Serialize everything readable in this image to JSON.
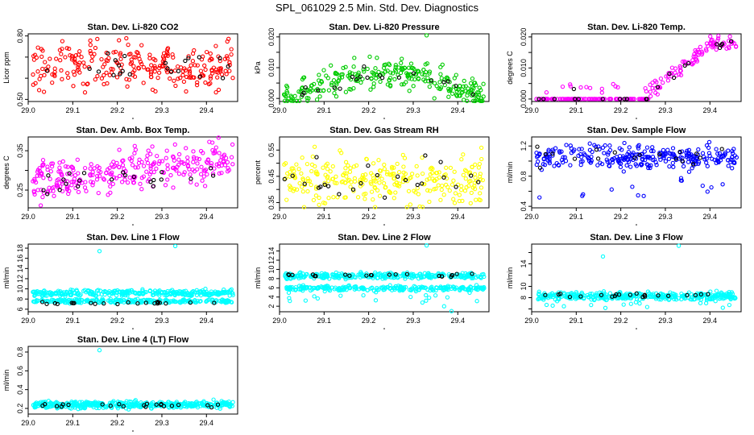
{
  "title": "SPL_061029  2.5 Min. Std. Dev. Diagnostics",
  "colors": {
    "black": "#000000",
    "red": "#ff0000",
    "green": "#00cc00",
    "magenta": "#ff00ff",
    "yellow": "#ffff00",
    "blue": "#0000ff",
    "cyan": "#00ffff"
  },
  "chart_data": [
    {
      "type": "scatter",
      "title": "Stan. Dev. Li-820 CO2",
      "ylabel": "Licor ppm",
      "xlim": [
        29.0,
        29.47
      ],
      "ylim": [
        0.49,
        0.81
      ],
      "xticks": [
        "29.0",
        "29.1",
        "29.2",
        "29.3",
        "29.4"
      ],
      "yticks": [
        "0.50",
        "0.60",
        "0.70",
        "0.80"
      ],
      "yticks_shown": [
        "0.50",
        "0.65",
        "0.80"
      ],
      "series": [
        {
          "name": "data",
          "color": "red",
          "n": 260,
          "pattern": "noise",
          "center": 0.66,
          "spread": 0.055,
          "x": [],
          "y": []
        },
        {
          "name": "highlight",
          "color": "black",
          "n": 22,
          "pattern": "noise",
          "center": 0.65,
          "spread": 0.04,
          "x": [],
          "y": []
        }
      ]
    },
    {
      "type": "scatter",
      "title": "Stan. Dev. Li-820 Pressure",
      "ylabel": "kPa",
      "xlim": [
        29.0,
        29.47
      ],
      "ylim": [
        -0.001,
        0.021
      ],
      "xticks": [
        "29.0",
        "29.1",
        "29.2",
        "29.3",
        "29.4"
      ],
      "yticks": [
        "0.000",
        "0.005",
        "0.010",
        "0.015",
        "0.020"
      ],
      "yticks_shown": [
        "0.000",
        "0.010",
        "0.020"
      ],
      "series": [
        {
          "name": "data",
          "color": "green",
          "n": 280,
          "pattern": "hump",
          "center": 0.008,
          "spread": 0.004,
          "x": [],
          "y": []
        },
        {
          "name": "highlight",
          "color": "black",
          "n": 20,
          "pattern": "hump",
          "center": 0.008,
          "spread": 0.002,
          "x": [],
          "y": []
        },
        {
          "name": "outlier",
          "color": "green",
          "n": 0,
          "pattern": "fixed",
          "x": [
            29.33
          ],
          "y": [
            0.0205
          ]
        }
      ]
    },
    {
      "type": "scatter",
      "title": "Stan. Dev. Li-820 Temp.",
      "ylabel": "degrees C",
      "xlim": [
        29.0,
        29.47
      ],
      "ylim": [
        -0.0008,
        0.021
      ],
      "xticks": [
        "29.0",
        "29.1",
        "29.2",
        "29.3",
        "29.4"
      ],
      "yticks": [
        "0.000",
        "0.005",
        "0.010",
        "0.015",
        "0.020"
      ],
      "yticks_shown": [
        "0.000",
        "0.010",
        "0.020"
      ],
      "series": [
        {
          "name": "data",
          "color": "magenta",
          "n": 220,
          "pattern": "ramp",
          "x": [],
          "y": []
        },
        {
          "name": "highlight",
          "color": "black",
          "n": 22,
          "pattern": "ramp",
          "x": [],
          "y": []
        }
      ]
    },
    {
      "type": "scatter",
      "title": "Stan. Dev. Amb. Box Temp.",
      "ylabel": "degrees C",
      "xlim": [
        29.0,
        29.47
      ],
      "ylim": [
        0.205,
        0.385
      ],
      "xticks": [
        "29.0",
        "29.1",
        "29.2",
        "29.3",
        "29.4"
      ],
      "yticks": [
        "0.25",
        "0.30",
        "0.35"
      ],
      "yticks_shown": [
        "0.25",
        "0.35"
      ],
      "series": [
        {
          "name": "data",
          "color": "magenta",
          "n": 290,
          "pattern": "trend",
          "center": 0.27,
          "slope": 0.06,
          "spread": 0.035,
          "x": [],
          "y": []
        },
        {
          "name": "highlight",
          "color": "black",
          "n": 22,
          "pattern": "trend",
          "center": 0.255,
          "slope": 0.04,
          "spread": 0.02,
          "x": [],
          "y": []
        }
      ]
    },
    {
      "type": "scatter",
      "title": "Stan. Dev. Gas Stream RH",
      "ylabel": "percent",
      "xlim": [
        29.0,
        29.47
      ],
      "ylim": [
        0.33,
        0.6
      ],
      "xticks": [
        "29.0",
        "29.1",
        "29.2",
        "29.3",
        "29.4"
      ],
      "yticks": [
        "0.35",
        "0.40",
        "0.45",
        "0.50",
        "0.55"
      ],
      "yticks_shown": [
        "0.35",
        "0.45",
        "0.55"
      ],
      "series": [
        {
          "name": "data",
          "color": "yellow",
          "n": 280,
          "pattern": "noise",
          "center": 0.44,
          "spread": 0.045,
          "x": [],
          "y": []
        },
        {
          "name": "highlight",
          "color": "black",
          "n": 24,
          "pattern": "noise",
          "center": 0.445,
          "spread": 0.04,
          "x": [],
          "y": []
        }
      ]
    },
    {
      "type": "scatter",
      "title": "Stan. Dev. Sample Flow",
      "ylabel": "ml/min",
      "xlim": [
        29.0,
        29.47
      ],
      "ylim": [
        0.38,
        1.32
      ],
      "xticks": [
        "29.0",
        "29.1",
        "29.2",
        "29.3",
        "29.4"
      ],
      "yticks": [
        "0.4",
        "0.6",
        "0.8",
        "1.0",
        "1.2"
      ],
      "yticks_shown": [
        "0.4",
        "0.8",
        "1.2"
      ],
      "series": [
        {
          "name": "data",
          "color": "blue",
          "n": 280,
          "pattern": "noise",
          "center": 1.05,
          "spread": 0.08,
          "x": [],
          "y": []
        },
        {
          "name": "low",
          "color": "blue",
          "n": 14,
          "pattern": "noise",
          "center": 0.6,
          "spread": 0.08,
          "x": [],
          "y": []
        },
        {
          "name": "highlight",
          "color": "black",
          "n": 18,
          "pattern": "noise",
          "center": 1.1,
          "spread": 0.07,
          "x": [],
          "y": []
        }
      ]
    },
    {
      "type": "scatter",
      "title": "Stan. Dev. Line 1 Flow",
      "ylabel": "ml/min",
      "xlim": [
        29.0,
        29.47
      ],
      "ylim": [
        5.5,
        18.8
      ],
      "xticks": [
        "29.0",
        "29.1",
        "29.2",
        "29.3",
        "29.4"
      ],
      "yticks": [
        "6",
        "8",
        "10",
        "12",
        "14",
        "16",
        "18"
      ],
      "yticks_shown": [
        "6",
        "8",
        "10",
        "12",
        "14",
        "16",
        "18"
      ],
      "series": [
        {
          "name": "band-high",
          "color": "cyan",
          "n": 300,
          "pattern": "band",
          "center": 9.2,
          "spread": 0.5,
          "x": [],
          "y": []
        },
        {
          "name": "band-low",
          "color": "cyan",
          "n": 260,
          "pattern": "band",
          "center": 7.6,
          "spread": 0.3,
          "x": [],
          "y": []
        },
        {
          "name": "highlight",
          "color": "black",
          "n": 22,
          "pattern": "band",
          "center": 7.2,
          "spread": 0.2,
          "x": [],
          "y": []
        },
        {
          "name": "outlier",
          "color": "cyan",
          "n": 0,
          "pattern": "fixed",
          "x": [
            29.16,
            29.33
          ],
          "y": [
            17.4,
            18.4
          ]
        }
      ]
    },
    {
      "type": "scatter",
      "title": "Stan. Dev. Line 2 Flow",
      "ylabel": "ml/min",
      "xlim": [
        29.0,
        29.47
      ],
      "ylim": [
        0.8,
        15.5
      ],
      "xticks": [
        "29.0",
        "29.1",
        "29.2",
        "29.3",
        "29.4"
      ],
      "yticks": [
        "2",
        "4",
        "6",
        "8",
        "10",
        "12",
        "14"
      ],
      "yticks_shown": [
        "2",
        "4",
        "6",
        "8",
        "10",
        "12",
        "14"
      ],
      "series": [
        {
          "name": "band-high",
          "color": "cyan",
          "n": 300,
          "pattern": "band",
          "center": 8.6,
          "spread": 0.5,
          "x": [],
          "y": []
        },
        {
          "name": "band-low",
          "color": "cyan",
          "n": 240,
          "pattern": "band",
          "center": 5.9,
          "spread": 0.4,
          "x": [],
          "y": []
        },
        {
          "name": "scatter",
          "color": "cyan",
          "n": 22,
          "pattern": "noise",
          "center": 3.4,
          "spread": 1.2,
          "x": [],
          "y": []
        },
        {
          "name": "highlight",
          "color": "black",
          "n": 22,
          "pattern": "band",
          "center": 8.8,
          "spread": 0.3,
          "x": [],
          "y": []
        },
        {
          "name": "outlier",
          "color": "cyan",
          "n": 0,
          "pattern": "fixed",
          "x": [
            29.33
          ],
          "y": [
            15.2
          ]
        }
      ]
    },
    {
      "type": "scatter",
      "title": "Stan. Dev. Line 3 Flow",
      "ylabel": "ml/min",
      "xlim": [
        29.0,
        29.47
      ],
      "ylim": [
        5.5,
        17.5
      ],
      "xticks": [
        "29.0",
        "29.1",
        "29.2",
        "29.3",
        "29.4"
      ],
      "yticks": [
        "6",
        "8",
        "10",
        "12",
        "14",
        "16"
      ],
      "yticks_shown": [
        "8",
        "10",
        "14"
      ],
      "series": [
        {
          "name": "band",
          "color": "cyan",
          "n": 380,
          "pattern": "band",
          "center": 8.3,
          "spread": 0.6,
          "x": [],
          "y": []
        },
        {
          "name": "low",
          "color": "cyan",
          "n": 14,
          "pattern": "noise",
          "center": 6.8,
          "spread": 0.4,
          "x": [],
          "y": []
        },
        {
          "name": "highlight",
          "color": "black",
          "n": 22,
          "pattern": "band",
          "center": 8.4,
          "spread": 0.3,
          "x": [],
          "y": []
        },
        {
          "name": "outlier",
          "color": "cyan",
          "n": 0,
          "pattern": "fixed",
          "x": [
            29.16,
            29.33
          ],
          "y": [
            15.3,
            17.2
          ]
        }
      ]
    },
    {
      "type": "scatter",
      "title": "Stan. Dev. Line 4 (LT) Flow",
      "ylabel": "ml/min",
      "xlim": [
        29.0,
        29.47
      ],
      "ylim": [
        0.14,
        0.86
      ],
      "xticks": [
        "29.0",
        "29.1",
        "29.2",
        "29.3",
        "29.4"
      ],
      "yticks": [
        "0.2",
        "0.4",
        "0.6",
        "0.8"
      ],
      "yticks_shown": [
        "0.2",
        "0.4",
        "0.6",
        "0.8"
      ],
      "series": [
        {
          "name": "band",
          "color": "cyan",
          "n": 420,
          "pattern": "band",
          "center": 0.24,
          "spread": 0.03,
          "x": [],
          "y": []
        },
        {
          "name": "highlight",
          "color": "black",
          "n": 22,
          "pattern": "band",
          "center": 0.23,
          "spread": 0.02,
          "x": [],
          "y": []
        },
        {
          "name": "outlier",
          "color": "cyan",
          "n": 0,
          "pattern": "fixed",
          "x": [
            29.16
          ],
          "y": [
            0.82
          ]
        }
      ]
    }
  ]
}
